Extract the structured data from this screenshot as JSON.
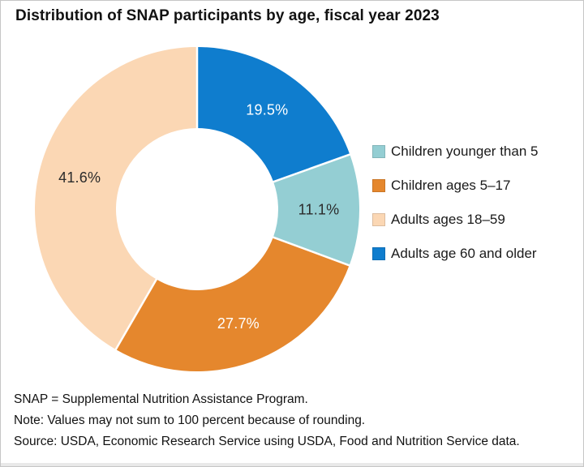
{
  "page": {
    "title": "Distribution of SNAP participants by age, fiscal year 2023"
  },
  "chart_data": {
    "type": "pie",
    "variant": "donut",
    "title": "Distribution of SNAP participants by age, fiscal year 2023",
    "unit": "percent of SNAP participants",
    "start_angle_deg": 0,
    "direction": "clockwise",
    "inner_radius_ratio": 0.5,
    "legend_position": "right",
    "slices": [
      {
        "label": "Adults age 60 and older",
        "value": 19.5,
        "display": "19.5%",
        "color": "#0f7dce",
        "label_color": "#ffffff"
      },
      {
        "label": "Children younger than 5",
        "value": 11.1,
        "display": "11.1%",
        "color": "#94ced3",
        "label_color": "#2b2b2b"
      },
      {
        "label": "Children ages 5–17",
        "value": 27.7,
        "display": "27.7%",
        "color": "#e5872d",
        "label_color": "#ffffff"
      },
      {
        "label": "Adults ages 18–59",
        "value": 41.6,
        "display": "41.6%",
        "color": "#fbd7b4",
        "label_color": "#2b2b2b"
      }
    ],
    "legend": [
      {
        "label": "Children younger than 5",
        "color": "#94ced3"
      },
      {
        "label": "Children ages 5–17",
        "color": "#e5872d"
      },
      {
        "label": "Adults ages 18–59",
        "color": "#fbd7b4"
      },
      {
        "label": "Adults age 60 and older",
        "color": "#0f7dce"
      }
    ]
  },
  "footnotes": {
    "line1": "SNAP = Supplemental Nutrition Assistance Program.",
    "line2": "Note: Values may not sum to 100 percent because of rounding.",
    "line3": "Source: USDA, Economic Research Service using USDA, Food and Nutrition Service data."
  }
}
